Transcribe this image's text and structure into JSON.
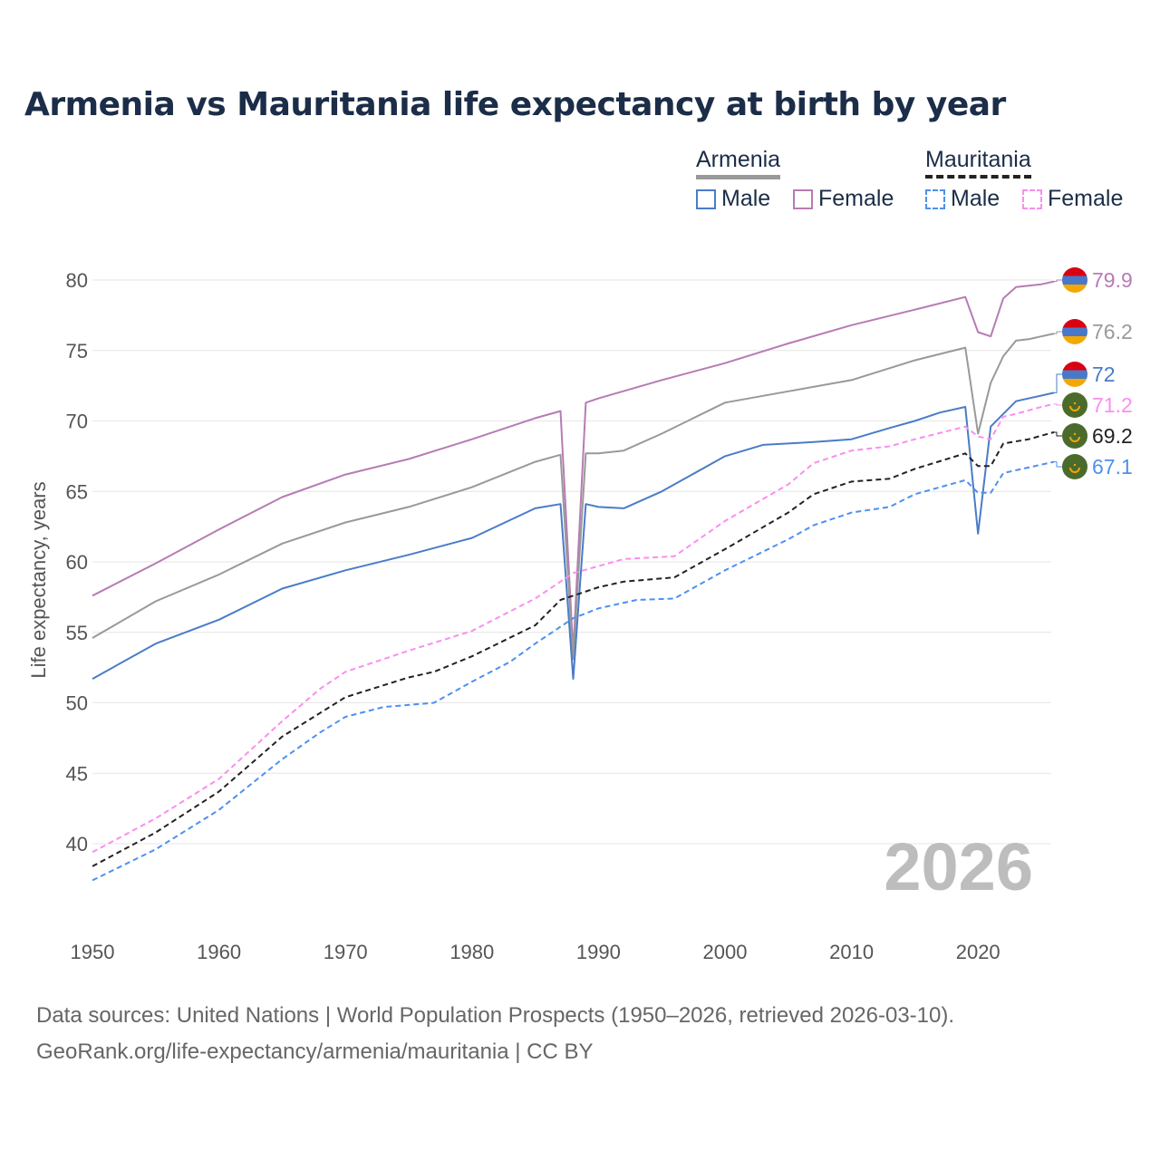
{
  "title": "Armenia vs Mauritania life expectancy at birth by year",
  "legend": {
    "armenia": {
      "label": "Armenia",
      "male": "Male",
      "female": "Female"
    },
    "mauritania": {
      "label": "Mauritania",
      "male": "Male",
      "female": "Female"
    }
  },
  "current_year": "2026",
  "footer": {
    "line1": "Data sources: United Nations | World Population Prospects (1950–2026, retrieved 2026-03-10).",
    "line2": "GeoRank.org/life-expectancy/armenia/mauritania | CC BY"
  },
  "colors": {
    "armenia_male": "#4a7cc7",
    "armenia_female": "#b77bb4",
    "armenia_total": "#999999",
    "mauritania_male": "#4d90f0",
    "mauritania_female": "#f98ef0",
    "mauritania_total": "#222222"
  },
  "chart_data": {
    "type": "line",
    "title": "Armenia vs Mauritania life expectancy at birth by year",
    "xlabel": "",
    "ylabel": "Life expectancy, years",
    "xlim": [
      1950,
      2026
    ],
    "ylim": [
      37,
      82
    ],
    "xticks": [
      "1950",
      "1960",
      "1970",
      "1980",
      "1990",
      "2000",
      "2010",
      "2020"
    ],
    "yticks": [
      "40",
      "45",
      "50",
      "55",
      "60",
      "65",
      "70",
      "75",
      "80"
    ],
    "grid": true,
    "series": [
      {
        "name": "Armenia Female",
        "color": "#b77bb4",
        "dashed": false,
        "end_label": "79.9",
        "flag": "armenia",
        "points": [
          [
            1950,
            57.6
          ],
          [
            1955,
            59.9
          ],
          [
            1960,
            62.3
          ],
          [
            1965,
            64.6
          ],
          [
            1970,
            66.2
          ],
          [
            1975,
            67.3
          ],
          [
            1980,
            68.7
          ],
          [
            1985,
            70.2
          ],
          [
            1987,
            70.7
          ],
          [
            1988,
            53.6
          ],
          [
            1989,
            71.3
          ],
          [
            1990,
            71.6
          ],
          [
            1995,
            72.9
          ],
          [
            2000,
            74.1
          ],
          [
            2005,
            75.5
          ],
          [
            2010,
            76.8
          ],
          [
            2015,
            77.9
          ],
          [
            2019,
            78.8
          ],
          [
            2020,
            76.3
          ],
          [
            2021,
            76.0
          ],
          [
            2022,
            78.7
          ],
          [
            2023,
            79.5
          ],
          [
            2024,
            79.6
          ],
          [
            2025,
            79.7
          ],
          [
            2026,
            79.9
          ]
        ]
      },
      {
        "name": "Armenia Total",
        "color": "#999999",
        "dashed": false,
        "end_label": "76.2",
        "flag": "armenia",
        "points": [
          [
            1950,
            54.6
          ],
          [
            1955,
            57.2
          ],
          [
            1960,
            59.1
          ],
          [
            1965,
            61.3
          ],
          [
            1970,
            62.8
          ],
          [
            1975,
            63.9
          ],
          [
            1980,
            65.3
          ],
          [
            1985,
            67.1
          ],
          [
            1987,
            67.6
          ],
          [
            1988,
            53.1
          ],
          [
            1989,
            67.7
          ],
          [
            1990,
            67.7
          ],
          [
            1992,
            67.9
          ],
          [
            1995,
            69.1
          ],
          [
            2000,
            71.3
          ],
          [
            2005,
            72.1
          ],
          [
            2010,
            72.9
          ],
          [
            2015,
            74.3
          ],
          [
            2019,
            75.2
          ],
          [
            2020,
            69.1
          ],
          [
            2021,
            72.7
          ],
          [
            2022,
            74.6
          ],
          [
            2023,
            75.7
          ],
          [
            2024,
            75.8
          ],
          [
            2025,
            76.0
          ],
          [
            2026,
            76.2
          ]
        ]
      },
      {
        "name": "Armenia Male",
        "color": "#4a7cc7",
        "dashed": false,
        "end_label": "72",
        "flag": "armenia",
        "points": [
          [
            1950,
            51.7
          ],
          [
            1955,
            54.2
          ],
          [
            1960,
            55.9
          ],
          [
            1965,
            58.1
          ],
          [
            1970,
            59.4
          ],
          [
            1975,
            60.5
          ],
          [
            1980,
            61.7
          ],
          [
            1985,
            63.8
          ],
          [
            1987,
            64.1
          ],
          [
            1988,
            51.7
          ],
          [
            1989,
            64.1
          ],
          [
            1990,
            63.9
          ],
          [
            1992,
            63.8
          ],
          [
            1995,
            65.0
          ],
          [
            2000,
            67.5
          ],
          [
            2003,
            68.3
          ],
          [
            2007,
            68.5
          ],
          [
            2010,
            68.7
          ],
          [
            2013,
            69.5
          ],
          [
            2015,
            70.0
          ],
          [
            2017,
            70.6
          ],
          [
            2019,
            71.0
          ],
          [
            2020,
            62.0
          ],
          [
            2021,
            69.6
          ],
          [
            2022,
            70.5
          ],
          [
            2023,
            71.4
          ],
          [
            2026,
            72.0
          ]
        ]
      },
      {
        "name": "Mauritania Female",
        "color": "#f98ef0",
        "dashed": true,
        "end_label": "71.2",
        "flag": "mauritania",
        "points": [
          [
            1950,
            39.4
          ],
          [
            1955,
            41.8
          ],
          [
            1960,
            44.6
          ],
          [
            1965,
            48.7
          ],
          [
            1968,
            51.0
          ],
          [
            1970,
            52.2
          ],
          [
            1975,
            53.7
          ],
          [
            1980,
            55.1
          ],
          [
            1985,
            57.4
          ],
          [
            1988,
            59.2
          ],
          [
            1990,
            59.7
          ],
          [
            1992,
            60.2
          ],
          [
            1996,
            60.4
          ],
          [
            2000,
            62.9
          ],
          [
            2005,
            65.5
          ],
          [
            2007,
            67.0
          ],
          [
            2010,
            67.9
          ],
          [
            2013,
            68.2
          ],
          [
            2015,
            68.7
          ],
          [
            2019,
            69.6
          ],
          [
            2020,
            68.9
          ],
          [
            2021,
            68.7
          ],
          [
            2022,
            70.3
          ],
          [
            2023,
            70.5
          ],
          [
            2025,
            71.0
          ],
          [
            2026,
            71.2
          ]
        ]
      },
      {
        "name": "Mauritania Total",
        "color": "#222222",
        "dashed": true,
        "end_label": "69.2",
        "flag": "mauritania",
        "points": [
          [
            1950,
            38.4
          ],
          [
            1955,
            40.8
          ],
          [
            1960,
            43.7
          ],
          [
            1965,
            47.6
          ],
          [
            1970,
            50.4
          ],
          [
            1975,
            51.8
          ],
          [
            1977,
            52.2
          ],
          [
            1980,
            53.3
          ],
          [
            1985,
            55.5
          ],
          [
            1987,
            57.3
          ],
          [
            1990,
            58.2
          ],
          [
            1992,
            58.6
          ],
          [
            1996,
            58.9
          ],
          [
            2000,
            60.9
          ],
          [
            2005,
            63.5
          ],
          [
            2007,
            64.8
          ],
          [
            2010,
            65.7
          ],
          [
            2013,
            65.9
          ],
          [
            2015,
            66.6
          ],
          [
            2019,
            67.7
          ],
          [
            2020,
            66.8
          ],
          [
            2021,
            66.8
          ],
          [
            2022,
            68.4
          ],
          [
            2024,
            68.7
          ],
          [
            2026,
            69.2
          ]
        ]
      },
      {
        "name": "Mauritania Male",
        "color": "#4d90f0",
        "dashed": true,
        "end_label": "67.1",
        "flag": "mauritania",
        "points": [
          [
            1950,
            37.4
          ],
          [
            1955,
            39.6
          ],
          [
            1960,
            42.4
          ],
          [
            1965,
            46.0
          ],
          [
            1968,
            47.9
          ],
          [
            1970,
            49.0
          ],
          [
            1973,
            49.7
          ],
          [
            1977,
            50.0
          ],
          [
            1980,
            51.5
          ],
          [
            1983,
            52.9
          ],
          [
            1985,
            54.2
          ],
          [
            1988,
            56.0
          ],
          [
            1990,
            56.7
          ],
          [
            1993,
            57.3
          ],
          [
            1996,
            57.4
          ],
          [
            2000,
            59.4
          ],
          [
            2005,
            61.6
          ],
          [
            2007,
            62.6
          ],
          [
            2010,
            63.5
          ],
          [
            2013,
            63.9
          ],
          [
            2015,
            64.8
          ],
          [
            2019,
            65.8
          ],
          [
            2020,
            64.9
          ],
          [
            2021,
            64.9
          ],
          [
            2022,
            66.3
          ],
          [
            2026,
            67.1
          ]
        ]
      }
    ]
  }
}
